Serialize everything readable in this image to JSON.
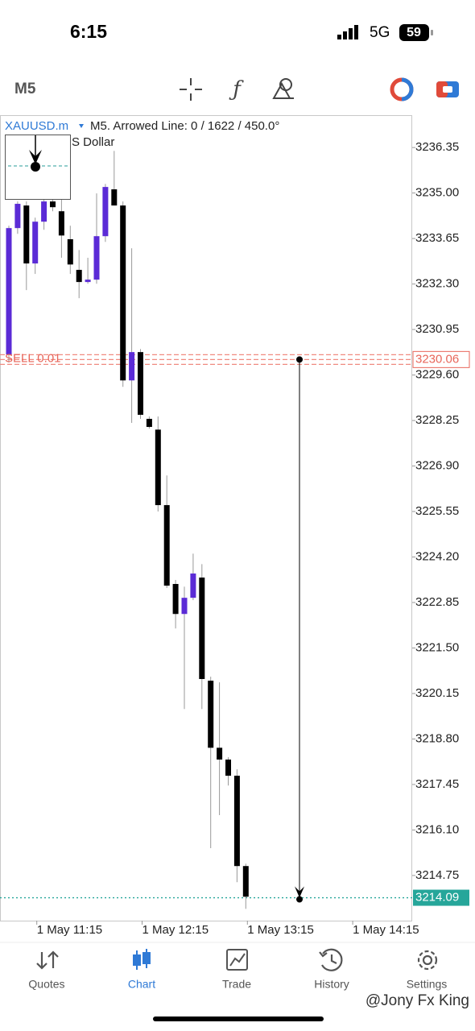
{
  "status_bar": {
    "time": "6:15",
    "network": "5G",
    "battery": "59"
  },
  "toolbar": {
    "timeframe": "M5"
  },
  "chart_data": {
    "type": "candlestick",
    "title": "XAUUSD.m",
    "subtitle": "M5. Arrowed Line: 0 / 1622 / 450.0°",
    "description": "S Dollar",
    "order_label": "SELL 0.01",
    "order_price": 3230.06,
    "bid_price": 3214.09,
    "up_color": "#5b2bd6",
    "down_color": "#000000",
    "categories": [
      null,
      null,
      null,
      "1 May 11:15",
      null,
      null,
      null,
      null,
      null,
      null,
      null,
      null,
      null,
      null,
      null,
      "1 May 12:15",
      null,
      null,
      null,
      null,
      null,
      null,
      null,
      null,
      null,
      null,
      null,
      "1 May 13:15"
    ],
    "next_time_label": "1 May 14:15",
    "open": [
      3230.21,
      3233.96,
      3234.63,
      3232.91,
      3234.15,
      3234.75,
      3234.46,
      3233.63,
      3232.72,
      3232.36,
      3232.43,
      3233.72,
      3235.11,
      3234.63,
      3229.44,
      3230.28,
      3228.3,
      3227.98,
      3225.74,
      3223.4,
      3222.51,
      3222.99,
      3223.59,
      3220.53,
      3218.54,
      3218.19,
      3217.71,
      3215.03
    ],
    "high": [
      3234.03,
      3234.75,
      3234.75,
      3234.27,
      3235.11,
      3234.99,
      3234.99,
      3234.03,
      3233.31,
      3233.08,
      3234.99,
      3235.27,
      3236.25,
      3234.75,
      3233.36,
      3230.37,
      3228.37,
      3228.37,
      3226.62,
      3223.52,
      3223.32,
      3224.3,
      3223.99,
      3220.65,
      3220.48,
      3218.26,
      3217.9,
      3215.1
    ],
    "low": [
      3229.97,
      3233.79,
      3232.12,
      3232.6,
      3233.91,
      3234.46,
      3233.08,
      3232.6,
      3231.88,
      3232.31,
      3232.31,
      3233.55,
      3234.63,
      3229.25,
      3228.18,
      3228.3,
      3228.01,
      3225.55,
      3223.28,
      3222.08,
      3219.69,
      3222.92,
      3219.69,
      3215.56,
      3216.54,
      3217.42,
      3214.55,
      3213.76
    ],
    "close": [
      3233.96,
      3234.68,
      3232.91,
      3234.15,
      3234.75,
      3234.58,
      3233.74,
      3232.88,
      3232.36,
      3232.43,
      3233.72,
      3235.18,
      3234.63,
      3229.44,
      3230.28,
      3228.42,
      3228.06,
      3225.74,
      3223.35,
      3222.51,
      3222.99,
      3223.71,
      3220.58,
      3218.54,
      3218.19,
      3217.71,
      3215.03,
      3214.12
    ],
    "ylim": [
      3213.41,
      3237.31
    ],
    "yticks": [
      3236.35,
      {
        "value": 3235,
        "label": "3235.00"
      },
      3233.65,
      {
        "value": 3232.3,
        "label": "3232.30"
      },
      3230.95,
      {
        "value": 3229.6,
        "label": "3229.60"
      },
      3228.25,
      {
        "value": 3226.9,
        "label": "3226.90"
      },
      3225.55,
      {
        "value": 3224.2,
        "label": "3224.20"
      },
      3222.85,
      {
        "value": 3221.5,
        "label": "3221.50"
      },
      3220.15,
      {
        "value": 3218.8,
        "label": "3218.80"
      },
      3217.45,
      {
        "value": 3216.1,
        "label": "3216.10"
      },
      3214.75
    ]
  },
  "nav": {
    "items": [
      "Quotes",
      "Chart",
      "Trade",
      "History",
      "Settings"
    ]
  },
  "watermark": "@Jony Fx King"
}
